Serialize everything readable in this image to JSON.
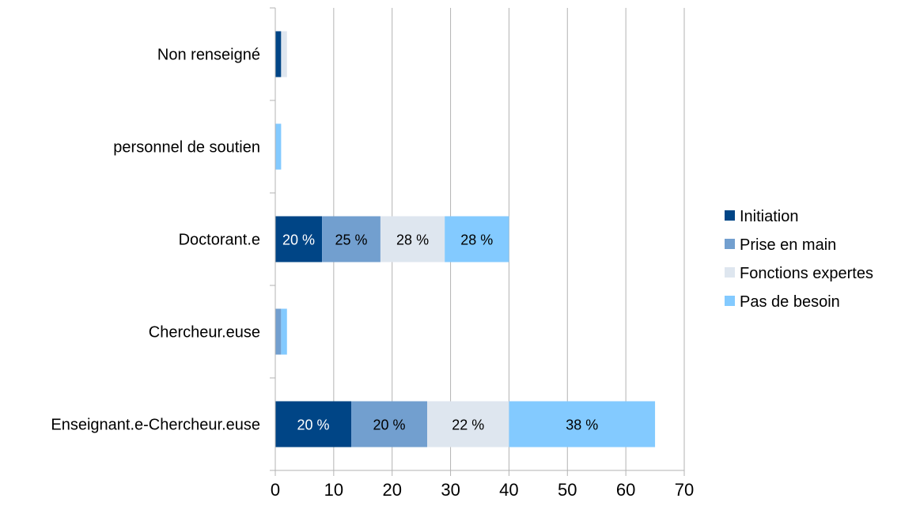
{
  "chart_data": {
    "type": "bar",
    "orientation": "horizontal",
    "stacked": true,
    "categories": [
      "Non renseigné",
      "personnel de soutien",
      "Doctorant.e",
      "Chercheur.euse",
      "Enseignant.e-Chercheur.euse"
    ],
    "series": [
      {
        "name": "Initiation",
        "color": "#004586",
        "values": [
          1,
          0,
          8,
          0,
          13
        ],
        "labels": [
          "",
          "",
          "20 %",
          "",
          "20 %"
        ],
        "label_color": "#ffffff"
      },
      {
        "name": "Prise en main",
        "color": "#729fcf",
        "values": [
          0,
          0,
          10,
          1,
          13
        ],
        "labels": [
          "",
          "",
          "25 %",
          "",
          "20 %"
        ],
        "label_color": "#000000"
      },
      {
        "name": "Fonctions expertes",
        "color": "#dee6ef",
        "values": [
          1,
          0,
          11,
          0,
          14
        ],
        "labels": [
          "",
          "",
          "28 %",
          "",
          "22 %"
        ],
        "label_color": "#000000"
      },
      {
        "name": "Pas de besoin",
        "color": "#83caff",
        "values": [
          0,
          1,
          11,
          1,
          25
        ],
        "labels": [
          "",
          "",
          "28 %",
          "",
          "38 %"
        ],
        "label_color": "#000000"
      }
    ],
    "xlim": [
      0,
      70
    ],
    "xticks": [
      "0",
      "10",
      "20",
      "30",
      "40",
      "50",
      "60",
      "70"
    ],
    "grid": true,
    "legend_position": "right"
  }
}
